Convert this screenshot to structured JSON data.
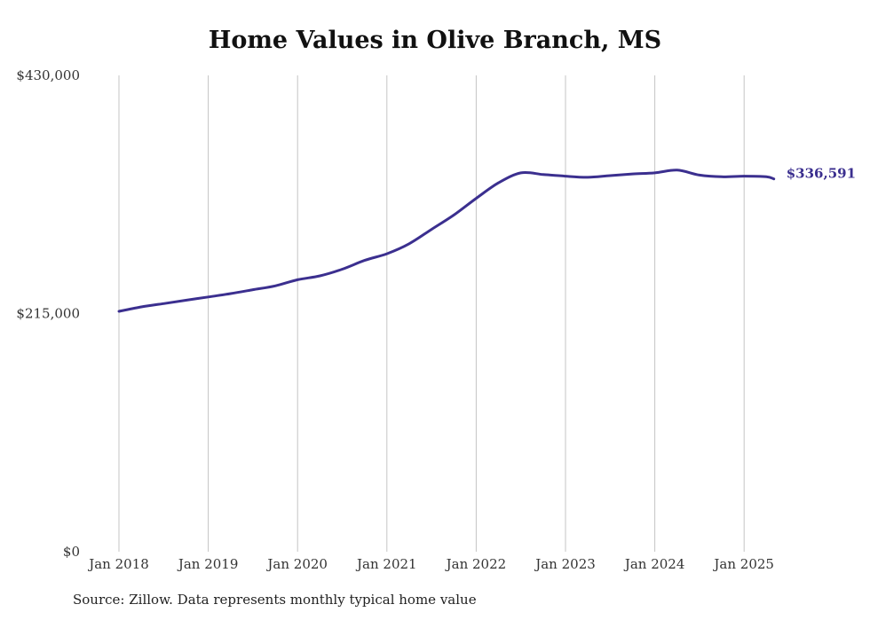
{
  "chart_data": {
    "type": "line",
    "title": "Home Values in Olive Branch, MS",
    "source": "Source: Zillow. Data represents monthly typical home value",
    "ylim": [
      0,
      430000
    ],
    "y_ticks": [
      {
        "value": 0,
        "label": "$0"
      },
      {
        "value": 215000,
        "label": "$215,000"
      },
      {
        "value": 430000,
        "label": "$430,000"
      }
    ],
    "x_ticks": [
      {
        "value": "2018-01",
        "label": "Jan 2018"
      },
      {
        "value": "2019-01",
        "label": "Jan 2019"
      },
      {
        "value": "2020-01",
        "label": "Jan 2020"
      },
      {
        "value": "2021-01",
        "label": "Jan 2021"
      },
      {
        "value": "2022-01",
        "label": "Jan 2022"
      },
      {
        "value": "2023-01",
        "label": "Jan 2023"
      },
      {
        "value": "2024-01",
        "label": "Jan 2024"
      },
      {
        "value": "2025-01",
        "label": "Jan 2025"
      }
    ],
    "grid": {
      "vertical": true,
      "horizontal": false
    },
    "line_color": "#3b2f8f",
    "end_label": "$336,591",
    "series": [
      {
        "x": [
          "2018-01",
          "2018-04",
          "2018-07",
          "2018-10",
          "2019-01",
          "2019-04",
          "2019-07",
          "2019-10",
          "2020-01",
          "2020-04",
          "2020-07",
          "2020-10",
          "2021-01",
          "2021-04",
          "2021-07",
          "2021-10",
          "2022-01",
          "2022-04",
          "2022-07",
          "2022-10",
          "2023-01",
          "2023-04",
          "2023-07",
          "2023-10",
          "2024-01",
          "2024-04",
          "2024-07",
          "2024-10",
          "2025-01",
          "2025-04",
          "2025-05"
        ],
        "values": [
          217000,
          221000,
          224000,
          227000,
          230000,
          233000,
          236500,
          240000,
          245500,
          249000,
          255000,
          263000,
          269000,
          278000,
          291000,
          304000,
          319000,
          333000,
          342000,
          340500,
          339000,
          338000,
          339500,
          341000,
          342000,
          344500,
          340000,
          338500,
          339000,
          338500,
          336591
        ]
      }
    ]
  }
}
